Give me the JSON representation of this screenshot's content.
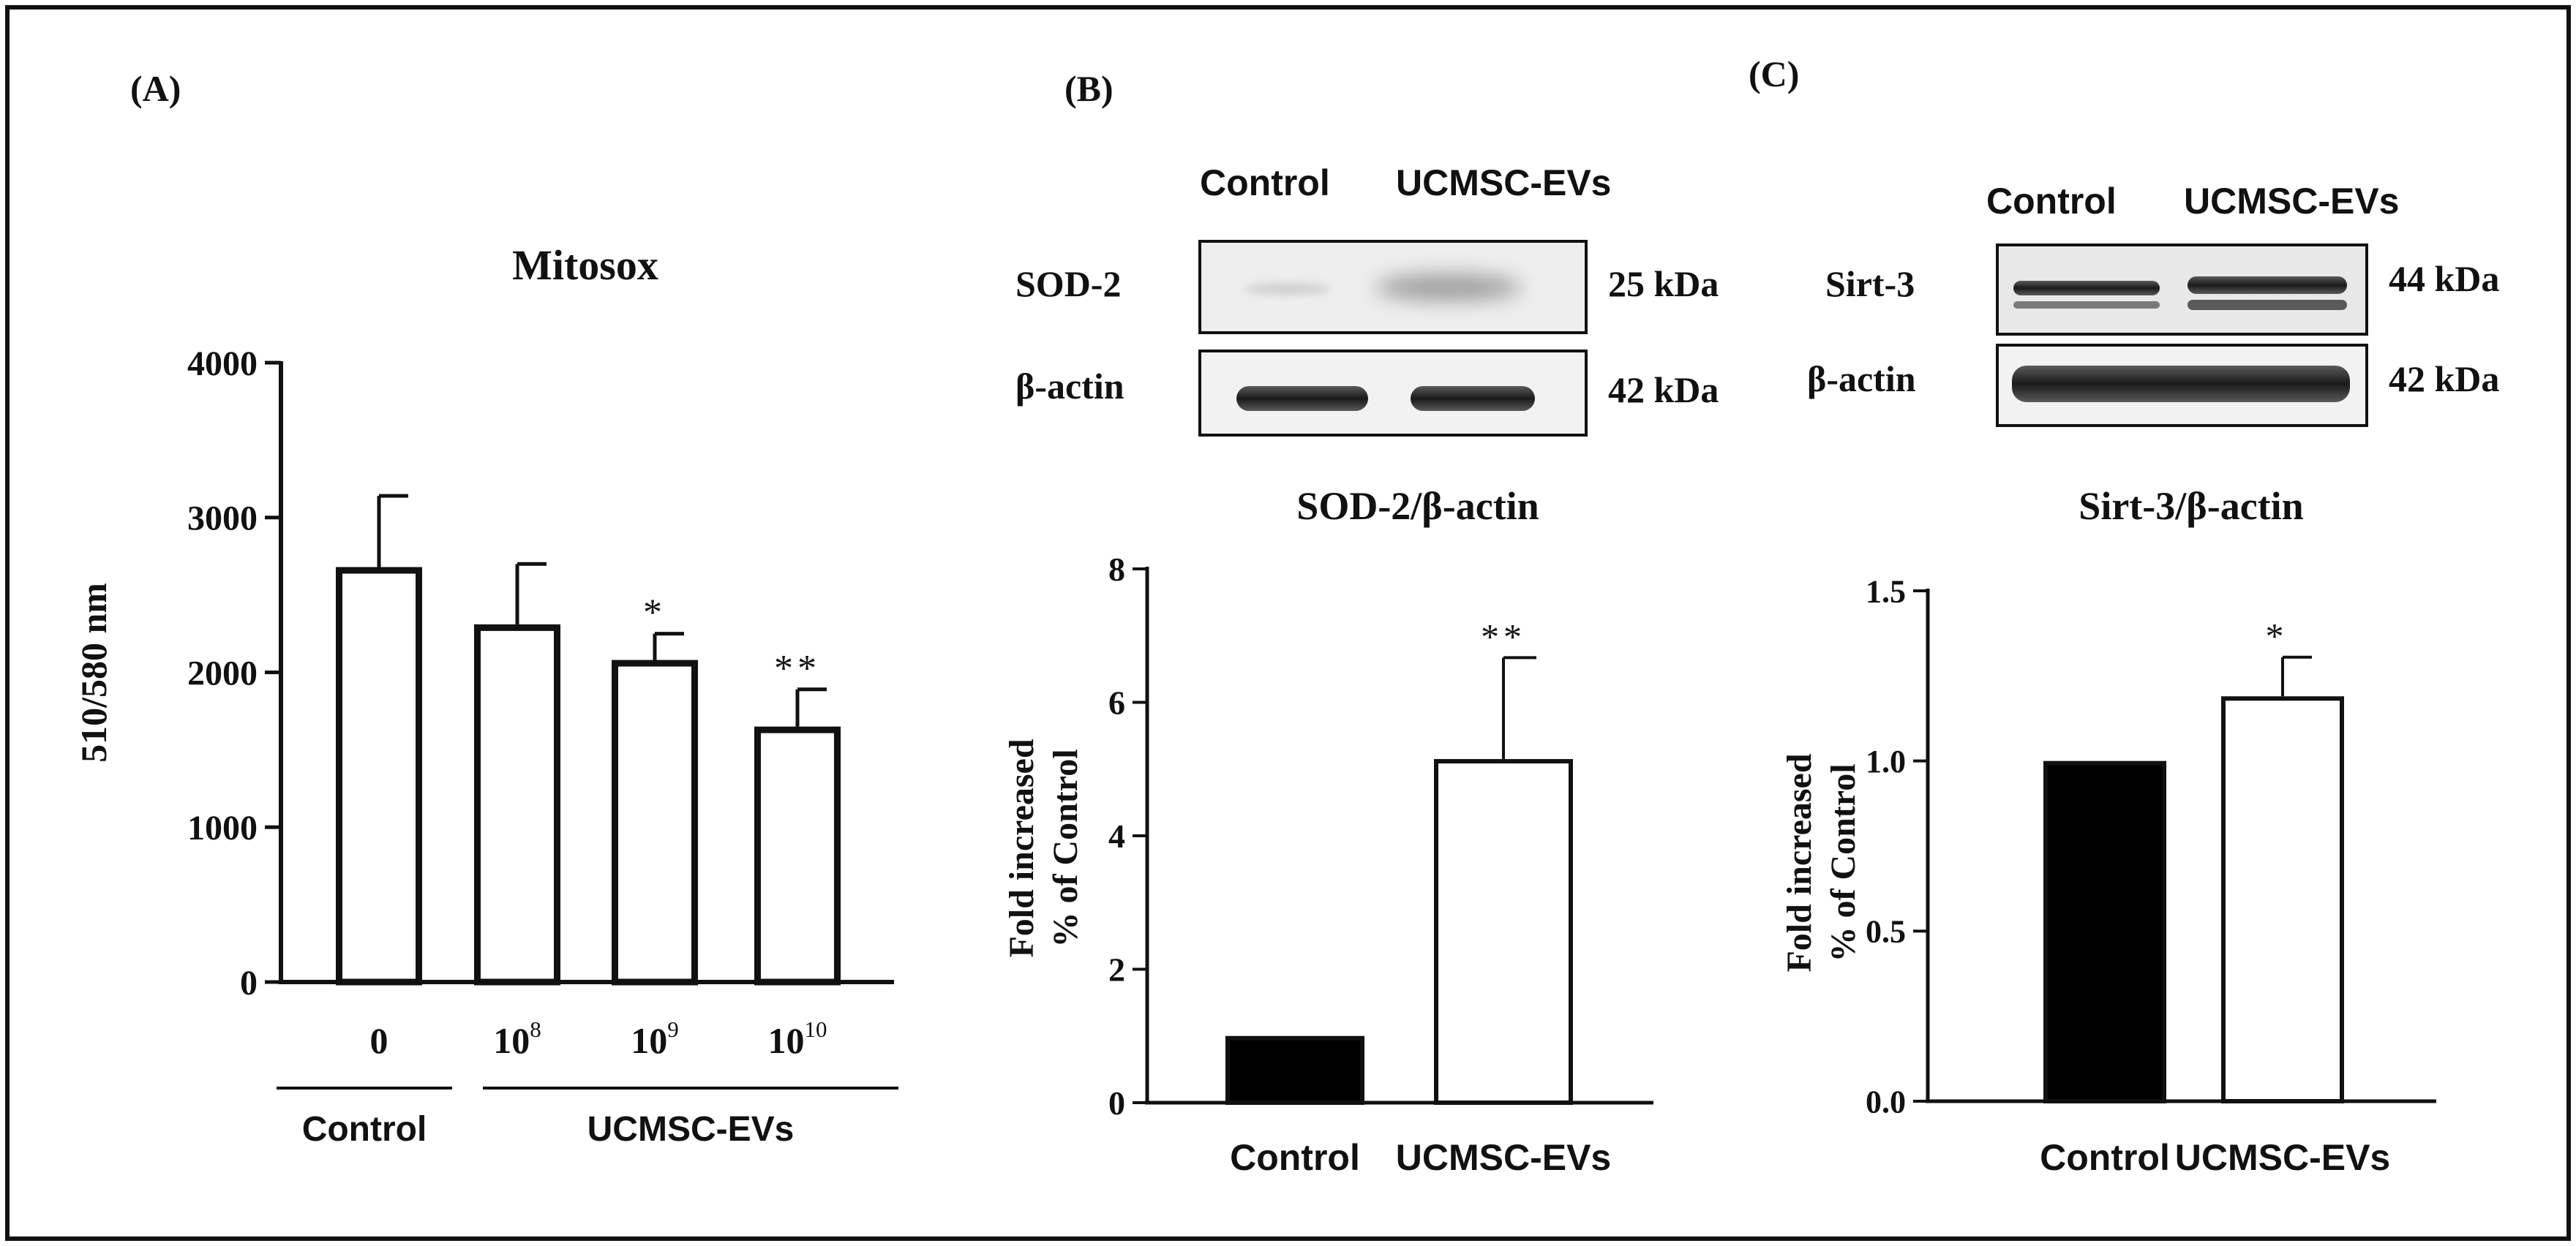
{
  "panels": {
    "a": {
      "label": "(A)"
    },
    "b": {
      "label": "(B)",
      "blot": {
        "col_labels": [
          "Control",
          "UCMSC-EVs"
        ],
        "rows": [
          {
            "protein": "SOD-2",
            "size": "25 kDa"
          },
          {
            "protein": "β-actin",
            "size": "42 kDa"
          }
        ]
      }
    },
    "c": {
      "label": "(C)",
      "blot": {
        "col_labels": [
          "Control",
          "UCMSC-EVs"
        ],
        "rows": [
          {
            "protein": "Sirt-3",
            "size": "44 kDa"
          },
          {
            "protein": "β-actin",
            "size": "42 kDa"
          }
        ]
      }
    }
  },
  "chart_data": [
    {
      "id": "mitosox",
      "type": "bar",
      "title": "Mitosox",
      "ylabel": "510/580 nm",
      "xlabel": "",
      "ylim": [
        0,
        4000
      ],
      "yticks": [
        0,
        1000,
        2000,
        3000,
        4000
      ],
      "categories": [
        {
          "base": "0",
          "exp": ""
        },
        {
          "base": "10",
          "exp": "8"
        },
        {
          "base": "10",
          "exp": "9"
        },
        {
          "base": "10",
          "exp": "10"
        }
      ],
      "values": [
        2680,
        2310,
        2080,
        1650
      ],
      "errors": [
        460,
        390,
        170,
        240
      ],
      "significance": [
        "",
        "",
        "*",
        "**"
      ],
      "fill": [
        "#ffffff",
        "#ffffff",
        "#ffffff",
        "#ffffff"
      ],
      "groups": [
        {
          "label": "Control",
          "from": 0,
          "to": 0
        },
        {
          "label": "UCMSC-EVs",
          "from": 1,
          "to": 3
        }
      ]
    },
    {
      "id": "sod2",
      "type": "bar",
      "title": "SOD-2/β-actin",
      "ylabel_lines": [
        "Fold increased",
        "% of Control"
      ],
      "xlabel": "",
      "ylim": [
        0,
        8
      ],
      "yticks": [
        0,
        2,
        4,
        6,
        8
      ],
      "categories": [
        "Control",
        "UCMSC-EVs"
      ],
      "values": [
        1.0,
        5.15
      ],
      "errors": [
        0,
        1.52
      ],
      "significance": [
        "",
        "**"
      ],
      "fill": [
        "#000000",
        "#ffffff"
      ]
    },
    {
      "id": "sirt3",
      "type": "bar",
      "title": "Sirt-3/β-actin",
      "ylabel_lines": [
        "Fold increased",
        "% of Control"
      ],
      "xlabel": "",
      "ylim": [
        0,
        1.5
      ],
      "yticks": [
        "0.0",
        "0.5",
        "1.0",
        "1.5"
      ],
      "categories": [
        "Control",
        "UCMSC-EVs"
      ],
      "values": [
        1.0,
        1.19
      ],
      "errors": [
        0,
        0.115
      ],
      "significance": [
        "",
        "*"
      ],
      "fill": [
        "#000000",
        "#ffffff"
      ]
    }
  ]
}
